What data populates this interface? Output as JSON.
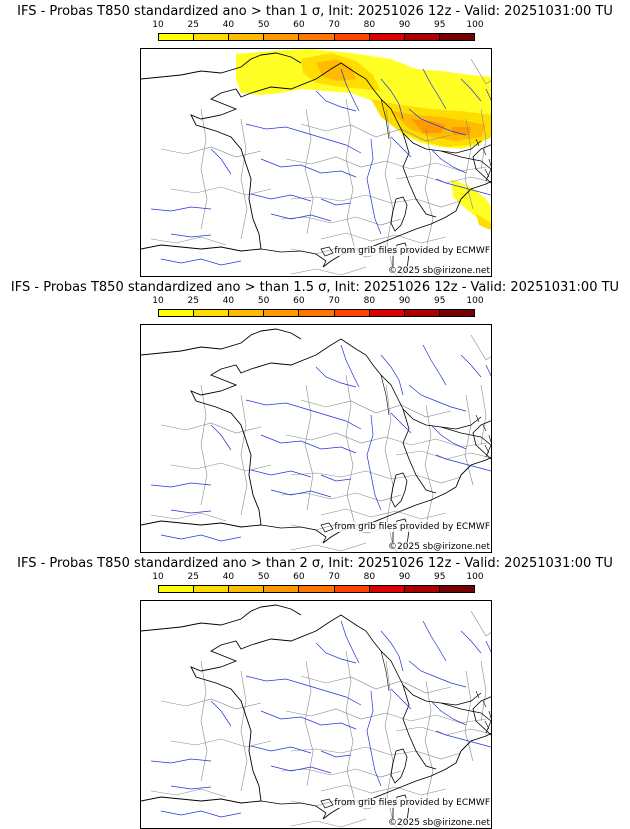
{
  "legend": {
    "ticks": [
      "10",
      "25",
      "40",
      "50",
      "60",
      "70",
      "80",
      "90",
      "95",
      "100"
    ],
    "colors": [
      "#ffff00",
      "#ffdd00",
      "#ffbb00",
      "#ff9900",
      "#ff7700",
      "#ff4400",
      "#dd0000",
      "#aa0000",
      "#770000"
    ]
  },
  "panels": [
    {
      "title": "IFS - Probas T850  standardized ano > than 1 σ, Init: 20251026 12z - Valid: 20251031:00 TU",
      "credit_source": "from grib files provided by ECMWF",
      "credit_copyright": "©2025 sb@irizone.net"
    },
    {
      "title": "IFS - Probas T850  standardized ano > than 1.5 σ, Init: 20251026 12z - Valid: 20251031:00 TU",
      "credit_source": "from grib files provided by ECMWF",
      "credit_copyright": "©2025 sb@irizone.net"
    },
    {
      "title": "IFS - Probas T850  standardized ano > than 2 σ, Init: 20251026 12z - Valid: 20251031:00 TU",
      "credit_source": "from grib files provided by ECMWF",
      "credit_copyright": "©2025 sb@irizone.net"
    }
  ]
}
